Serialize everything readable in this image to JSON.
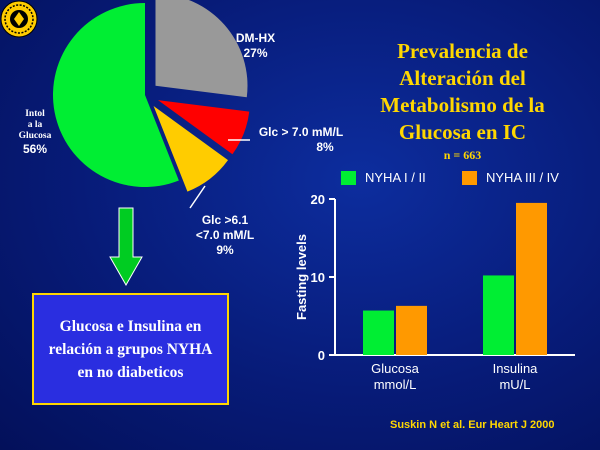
{
  "logo": {
    "label": "seal-logo"
  },
  "title": {
    "lines": [
      "Prevalencia de",
      "Alteración del",
      "Metabolismo de la",
      "Glucosa en IC"
    ],
    "n": "n = 663"
  },
  "box_text": "Glucosa e Insulina en relación a grupos NYHA en no diabeticos",
  "citation": "Suskin N et al. Eur Heart J 2000",
  "colors": {
    "background": "#071b78",
    "title": "#ffd700",
    "green": "#00ee33",
    "orange": "#ff9900",
    "gray": "#999999",
    "red": "#ff0000",
    "yellow": "#ffcc00",
    "box": "#2a2ee0"
  },
  "chart_data": [
    {
      "type": "pie",
      "slices": [
        {
          "label": "DM-HX",
          "label_lines": [
            "DM-HX"
          ],
          "value_label": "27%",
          "value": 27,
          "color": "#999999",
          "exploded": true
        },
        {
          "label": "Glc > 7.0 mM/L",
          "label_lines": [
            "Glc > 7.0 mM/L"
          ],
          "value_label": "8%",
          "value": 8,
          "color": "#ff0000",
          "exploded": true
        },
        {
          "label": "Glc >6.1 <7.0 mM/L",
          "label_lines": [
            "Glc >6.1",
            "<7.0 mM/L"
          ],
          "value_label": "9%",
          "value": 9,
          "color": "#ffcc00",
          "exploded": true
        },
        {
          "label": "Intol a la Glucosa",
          "label_lines": [
            "Intol",
            "a la",
            "Glucosa"
          ],
          "value_label": "56%",
          "value": 56,
          "color": "#00ee33",
          "exploded": false
        }
      ]
    },
    {
      "type": "bar",
      "categories": [
        "Glucosa",
        "Insulina"
      ],
      "category_lines": [
        [
          "Glucosa",
          "mmol/L"
        ],
        [
          "Insulina",
          "mU/L"
        ]
      ],
      "series": [
        {
          "name": "NYHA I / II",
          "color": "#00ee33",
          "values": [
            5.7,
            10.2
          ]
        },
        {
          "name": "NYHA III / IV",
          "color": "#ff9900",
          "values": [
            6.3,
            19.5
          ]
        }
      ],
      "ylabel": "Fasting levels",
      "ylim": [
        0,
        20
      ],
      "yticks": [
        0,
        10,
        20
      ],
      "legend": "top"
    }
  ]
}
